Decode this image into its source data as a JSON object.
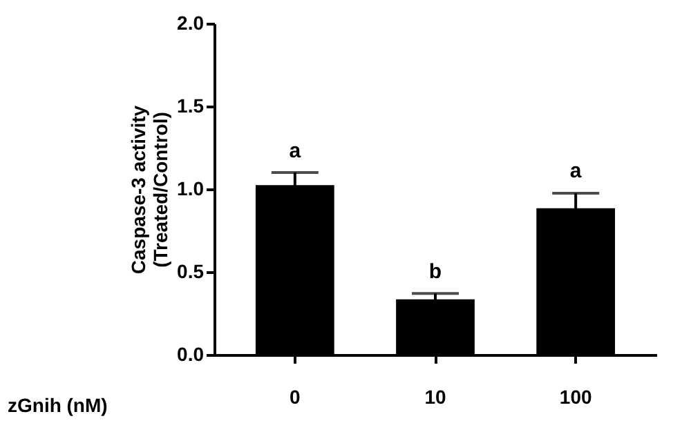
{
  "chart_data": {
    "type": "bar",
    "categories": [
      "0",
      "10",
      "100"
    ],
    "values": [
      1.02,
      0.33,
      0.88
    ],
    "errors": [
      0.08,
      0.04,
      0.095
    ],
    "color": "#000000",
    "xlabel": "zGnih (nM)",
    "ylabel": "Caspase-3 activity\n(Treated/Control)",
    "ylim": [
      0,
      2.0
    ],
    "yticks": [
      {
        "value": 0,
        "label": "0.0"
      },
      {
        "value": 0.5,
        "label": "0.5"
      },
      {
        "value": 1.0,
        "label": "1.0"
      },
      {
        "value": 1.5,
        "label": "1.5"
      },
      {
        "value": 2.0,
        "label": "2.0"
      }
    ],
    "annotations": [
      {
        "text": "a",
        "x": "0",
        "y": 1.1
      },
      {
        "text": "b",
        "x": "10",
        "y": 0.37
      },
      {
        "text": "a",
        "x": "100",
        "y": 0.98
      }
    ],
    "grid": false
  }
}
